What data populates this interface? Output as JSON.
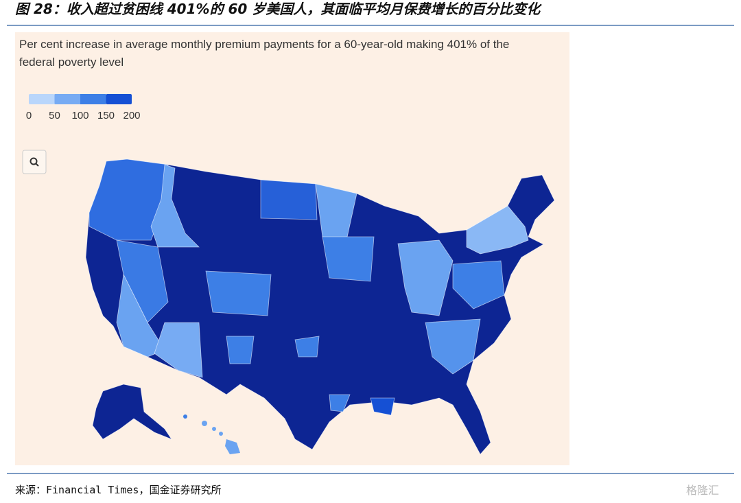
{
  "header": {
    "title": "图 28：收入超过贫困线 401%的 60 岁美国人，其面临平均月保费增长的百分比变化"
  },
  "map": {
    "subtitle_lines": [
      "Per cent increase in average monthly premium payments for a 60-year-old making 401% of the",
      "federal poverty level"
    ],
    "legend": {
      "ticks": [
        0,
        50,
        100,
        150,
        200
      ],
      "colors": [
        "#b9d6fb",
        "#77abf3",
        "#3d7fe6",
        "#1550d4"
      ]
    }
  },
  "footer": {
    "source": "来源：Financial Times，国金证券研究所",
    "watermark": "格隆汇"
  }
}
